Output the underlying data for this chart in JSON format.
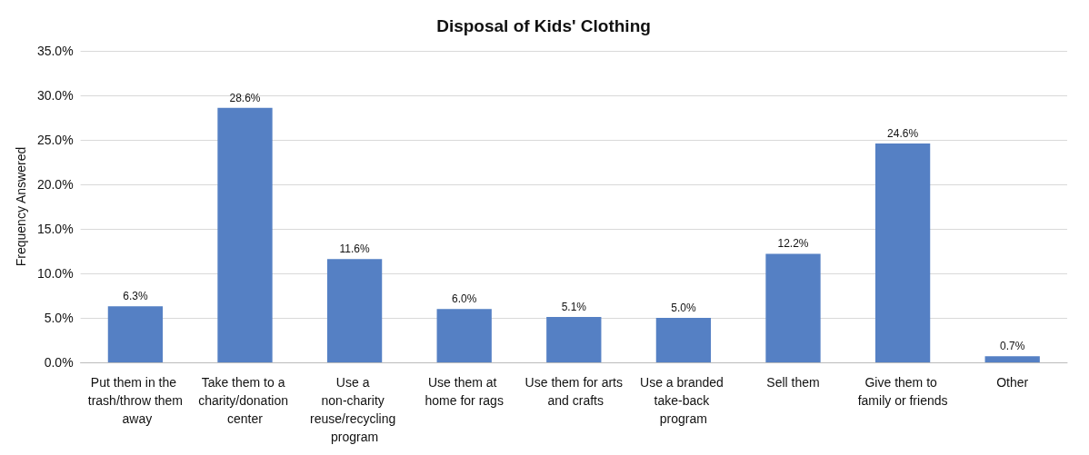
{
  "chart_data": {
    "type": "bar",
    "title": "Disposal of Kids' Clothing",
    "ylabel": "Frequency Answered",
    "categories": [
      "Put them in the trash/throw them away",
      "Take them to a charity/donation center",
      "Use a non-charity reuse/recycling program",
      "Use them at home for rags",
      "Use them for arts and crafts",
      "Use a branded take-back program",
      "Sell them",
      "Give them to family or friends",
      "Other"
    ],
    "values": [
      6.3,
      28.6,
      11.6,
      6.0,
      5.1,
      5.0,
      12.2,
      24.6,
      0.7
    ],
    "value_labels": [
      "6.3%",
      "28.6%",
      "11.6%",
      "6.0%",
      "5.1%",
      "5.0%",
      "12.2%",
      "24.6%",
      "0.7%"
    ],
    "color": "#5580c4",
    "ylim": [
      0,
      35
    ],
    "yticks": [
      {
        "value": 0,
        "label": "0.0%"
      },
      {
        "value": 5,
        "label": "5.0%"
      },
      {
        "value": 10,
        "label": "10.0%"
      },
      {
        "value": 15,
        "label": "15.0%"
      },
      {
        "value": 20,
        "label": "20.0%"
      },
      {
        "value": 25,
        "label": "25.0%"
      },
      {
        "value": 30,
        "label": "30.0%"
      },
      {
        "value": 35,
        "label": "35.0%"
      }
    ],
    "grid": "y"
  }
}
